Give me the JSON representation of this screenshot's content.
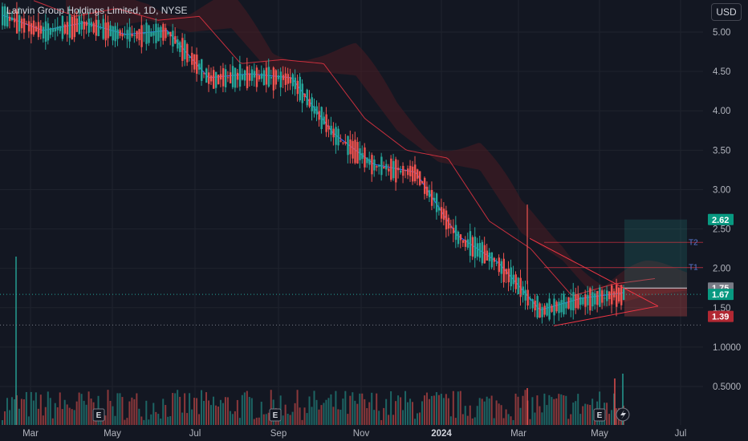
{
  "title": "Lanvin Group Holdings Limited, 1D, NYSE",
  "currency": "USD",
  "colors": {
    "background": "#131722",
    "up": "#26a69a",
    "down": "#ef5350",
    "ma_blue": "#2962ff",
    "ma_red": "#f23645",
    "grid": "#1f232d",
    "cloud": "#4a1c22"
  },
  "chart_data": {
    "type": "candlestick",
    "title": "Lanvin Group Holdings Limited, 1D, NYSE",
    "xlabel": "",
    "ylabel": "",
    "x_ticks": [
      "Mar",
      "May",
      "Jul",
      "Sep",
      "Nov",
      "2024",
      "Mar",
      "May",
      "Jul"
    ],
    "y_ticks": [
      "5.00",
      "4.50",
      "4.00",
      "3.50",
      "3.00",
      "2.50",
      "2.00",
      "1.50",
      "1.0000",
      "0.5000"
    ],
    "ylim": [
      0.1,
      5.4
    ],
    "grid": true,
    "price_path": [
      {
        "date": "Feb 2023",
        "price": 5.2
      },
      {
        "date": "Mar 2023",
        "price": 5.0
      },
      {
        "date": "Apr 2023",
        "price": 5.1
      },
      {
        "date": "May 2023",
        "price": 4.95
      },
      {
        "date": "Jun 2023",
        "price": 5.0
      },
      {
        "date": "Jul 2023",
        "price": 4.4
      },
      {
        "date": "Aug 2023",
        "price": 4.45
      },
      {
        "date": "Sep 2023",
        "price": 4.4
      },
      {
        "date": "Oct 2023",
        "price": 3.7
      },
      {
        "date": "Nov 2023",
        "price": 3.3
      },
      {
        "date": "Dec 2023",
        "price": 3.2
      },
      {
        "date": "Jan 2024",
        "price": 2.4
      },
      {
        "date": "Feb 2024",
        "price": 2.05
      },
      {
        "date": "Mar 2024",
        "price": 1.45
      },
      {
        "date": "Apr 2024",
        "price": 1.6
      },
      {
        "date": "May 2024",
        "price": 1.67
      }
    ],
    "volume_spikes": [
      {
        "date": "Feb 2023",
        "volume": 1.4
      },
      {
        "date": "Mar 2024",
        "volume": 0.6
      },
      {
        "date": "May 2024",
        "volume": 0.65
      }
    ],
    "price_labels": [
      {
        "value": "2.62",
        "color": "#089981"
      },
      {
        "value": "1.75",
        "color": "#787b86"
      },
      {
        "value": "1.67",
        "color": "#089981"
      },
      {
        "value": "1.39",
        "color": "#b22833"
      }
    ],
    "targets": [
      {
        "label": "T2",
        "value": 2.33
      },
      {
        "label": "T1",
        "value": 2.01
      }
    ],
    "events": [
      "E",
      "E",
      "E"
    ],
    "position": {
      "entry": 1.75,
      "stop": 1.39,
      "target": 2.62
    }
  }
}
